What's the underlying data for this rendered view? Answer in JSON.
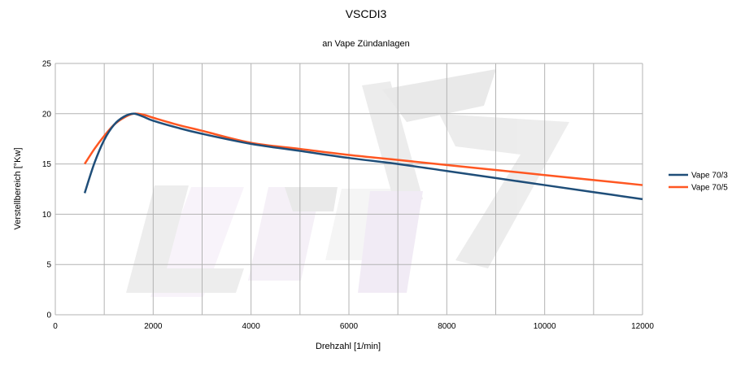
{
  "chart_data": {
    "type": "line",
    "title": "VSCDI3",
    "subtitle": "an Vape Zündanlagen",
    "xlabel": "Drehzahl [1/min]",
    "ylabel": "Verstellbereich [°Kw]",
    "xlim": [
      0,
      12000
    ],
    "ylim": [
      0,
      25
    ],
    "xticks": [
      0,
      2000,
      4000,
      6000,
      8000,
      10000,
      12000
    ],
    "yticks": [
      0,
      5,
      10,
      15,
      20,
      25
    ],
    "xtick_labels": [
      "0",
      "2000",
      "4000",
      "6000",
      "8000",
      "10000",
      "12000"
    ],
    "ytick_labels": [
      "0",
      "5",
      "10",
      "15",
      "20",
      "25"
    ],
    "grid": true,
    "legend_position": "right",
    "series": [
      {
        "name": "Vape 70/3",
        "color": "#1f4e79",
        "x": [
          600,
          800,
          1000,
          1200,
          1400,
          1600,
          1800,
          2000,
          2500,
          3000,
          4000,
          5000,
          6000,
          7000,
          8000,
          9000,
          10000,
          11000,
          12000
        ],
        "y": [
          12.1,
          15.1,
          17.4,
          18.9,
          19.7,
          20.0,
          19.7,
          19.3,
          18.6,
          18.0,
          17.0,
          16.3,
          15.6,
          15.0,
          14.3,
          13.6,
          12.9,
          12.2,
          11.5
        ]
      },
      {
        "name": "Vape 70/5",
        "color": "#ff5722",
        "x": [
          600,
          800,
          1000,
          1200,
          1400,
          1600,
          1800,
          2000,
          2500,
          3000,
          4000,
          5000,
          6000,
          7000,
          8000,
          9000,
          10000,
          11000,
          12000
        ],
        "y": [
          15.0,
          16.5,
          17.8,
          18.9,
          19.6,
          20.0,
          19.9,
          19.6,
          18.9,
          18.3,
          17.1,
          16.5,
          15.9,
          15.4,
          14.9,
          14.4,
          13.9,
          13.4,
          12.9
        ]
      }
    ],
    "watermark": "logo"
  }
}
